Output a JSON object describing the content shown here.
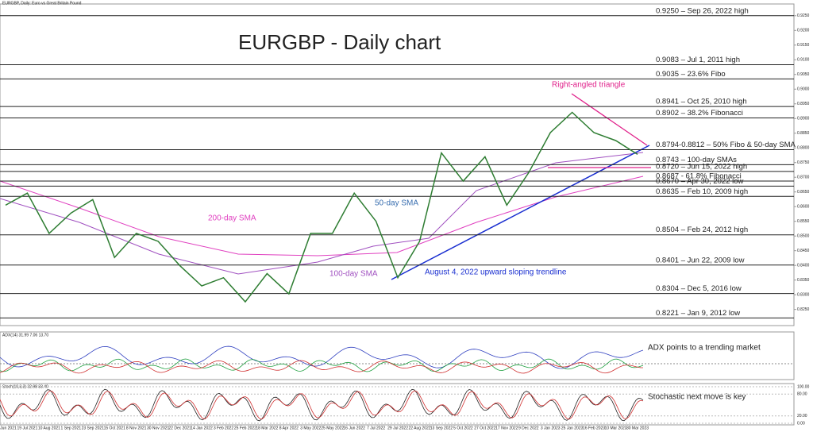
{
  "chart_data": {
    "type": "line",
    "header": "EURGBP, Daily: Euro vs Great Britain Pound",
    "title": "EURGBP - Daily chart",
    "categories": [
      "25 Jun 2021",
      "19 Jul 2021",
      "10 Aug 2021",
      "1 Sep 2021",
      "23 Sep 2021",
      "15 Oct 2021",
      "8 Nov 2021",
      "30 Nov 2021",
      "22 Dec 2021",
      "14 Jan 2022",
      "3 Feb 2022",
      "25 Feb 2022",
      "18 Mar 2022",
      "8 Apr 2022",
      "3 May 2022",
      "25 May 2022",
      "16 Jun 2022",
      "7 Jul 2022",
      "29 Jul 2022",
      "22 Aug 2022",
      "13 Sep 2022",
      "5 Oct 2022",
      "27 Oct 2022",
      "17 Nov 2022",
      "9 Dec 2022",
      "3 Jan 2023",
      "25 Jan 2023",
      "16 Feb 2023",
      "10 Mar 2023",
      "30 Mar 2023"
    ],
    "series": [
      {
        "name": "EURGBP",
        "color": "#2e7d32",
        "values": [
          0.8605,
          0.8646,
          0.8509,
          0.8578,
          0.8624,
          0.8427,
          0.8509,
          0.8482,
          0.8399,
          0.833,
          0.8358,
          0.8276,
          0.8372,
          0.8303,
          0.8509,
          0.8509,
          0.8646,
          0.855,
          0.8358,
          0.8482,
          0.8783,
          0.8687,
          0.877,
          0.8605,
          0.8715,
          0.8852,
          0.8921,
          0.8852,
          0.8825,
          0.8778
        ]
      }
    ],
    "ylim": [
      0.8195,
      0.929
    ],
    "yticks": [
      {
        "value": 0.925,
        "label": "0.9250"
      },
      {
        "value": 0.92,
        "label": "0.9200"
      },
      {
        "value": 0.915,
        "label": "0.9150"
      },
      {
        "value": 0.91,
        "label": "0.9100"
      },
      {
        "value": 0.905,
        "label": "0.9050"
      },
      {
        "value": 0.9,
        "label": "0.9000"
      },
      {
        "value": 0.895,
        "label": "0.8950"
      },
      {
        "value": 0.89,
        "label": "0.8900"
      },
      {
        "value": 0.885,
        "label": "0.8850"
      },
      {
        "value": 0.88,
        "label": "0.8800"
      },
      {
        "value": 0.875,
        "label": "0.8750"
      },
      {
        "value": 0.87,
        "label": "0.8700"
      },
      {
        "value": 0.865,
        "label": "0.8650"
      },
      {
        "value": 0.86,
        "label": "0.8600"
      },
      {
        "value": 0.855,
        "label": "0.8550"
      },
      {
        "value": 0.85,
        "label": "0.8500"
      },
      {
        "value": 0.845,
        "label": "0.8450"
      },
      {
        "value": 0.84,
        "label": "0.8400"
      },
      {
        "value": 0.835,
        "label": "0.8350"
      },
      {
        "value": 0.83,
        "label": "0.8300"
      },
      {
        "value": 0.825,
        "label": "0.8250"
      }
    ],
    "levels": [
      {
        "value": 0.925,
        "label": "0.9250 – Sep 26, 2022 high"
      },
      {
        "value": 0.9083,
        "label": "0.9083 – Jul 1, 2011 high"
      },
      {
        "value": 0.9035,
        "label": "0.9035 – 23.6% Fibo"
      },
      {
        "value": 0.8941,
        "label": "0.8941 – Oct 25, 2010 high"
      },
      {
        "value": 0.8902,
        "label": "0.8902 – 38.2% Fibonacci"
      },
      {
        "value": 0.8794,
        "label": "0.8794-0.8812 – 50% Fibo & 50-day SMA"
      },
      {
        "value": 0.8743,
        "label": "0.8743 – 100-day SMAs"
      },
      {
        "value": 0.872,
        "label": "0.8720 – Jun 15, 2022 high"
      },
      {
        "value": 0.8687,
        "label": "0.8687 - 61.8% Fibonacci"
      },
      {
        "value": 0.867,
        "label": "0.8670 – Apr 30, 2022 low"
      },
      {
        "value": 0.8635,
        "label": "0.8635 – Feb 10, 2009 high"
      },
      {
        "value": 0.8504,
        "label": "0.8504 – Feb 24, 2012 high"
      },
      {
        "value": 0.8401,
        "label": "0.8401 – Jun 22, 2009 low"
      },
      {
        "value": 0.8304,
        "label": "0.8304 – Dec 5, 2016 low"
      },
      {
        "value": 0.8221,
        "label": "0.8221 – Jan 9, 2012 low"
      }
    ],
    "annotations": {
      "triangle": "Right-angled triangle",
      "sma50": "50-day SMA",
      "sma200": "200-day SMA",
      "sma100": "100-day SMA",
      "trendline": "August 4, 2022 upward sloping trendline"
    },
    "adx": {
      "label": "ADX(14) 31.99 7.06 13.70",
      "note": "ADX points to a trending market"
    },
    "stoch": {
      "label": "Stoch(10,3,3) 32.98 33.40",
      "note": "Stochastic next move is key",
      "ticks": [
        {
          "value": 100,
          "label": "100.00"
        },
        {
          "value": 80,
          "label": "80.00"
        },
        {
          "value": 20,
          "label": "20.00"
        },
        {
          "value": 0,
          "label": "0.00"
        }
      ]
    }
  }
}
